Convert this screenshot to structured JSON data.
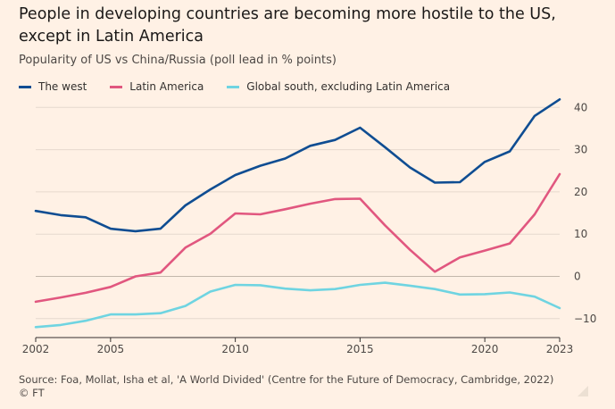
{
  "title": "People in developing countries are becoming more hostile to the US, except in Latin America",
  "subtitle": "Popularity of US vs China/Russia (poll lead in % points)",
  "source": "Source: Foa, Mollat, Isha et al, 'A World Divided' (Centre for the Future of Democracy, Cambridge, 2022)",
  "credit": "© FT",
  "chart_data": {
    "type": "line",
    "x": [
      2002,
      2003,
      2004,
      2005,
      2006,
      2007,
      2008,
      2009,
      2010,
      2011,
      2012,
      2013,
      2014,
      2015,
      2016,
      2017,
      2018,
      2019,
      2020,
      2021,
      2022,
      2023
    ],
    "xticks": [
      2002,
      2005,
      2010,
      2015,
      2020,
      2023
    ],
    "yticks": [
      -10,
      0,
      10,
      20,
      30,
      40
    ],
    "ylim": [
      -13,
      43
    ],
    "xlim": [
      2002,
      2023
    ],
    "grid": true,
    "legend_position": "top-left",
    "series": [
      {
        "name": "The west",
        "color": "#0f4d92",
        "values": [
          15.5,
          14.5,
          14.0,
          11.3,
          10.7,
          11.3,
          16.8,
          20.6,
          24.0,
          26.2,
          27.9,
          30.9,
          32.3,
          35.2,
          30.6,
          25.8,
          22.2,
          22.3,
          27.1,
          29.6,
          38.0,
          41.9
        ]
      },
      {
        "name": "Latin America",
        "color": "#e1577f",
        "values": [
          -6.0,
          -5.0,
          -3.9,
          -2.5,
          0.0,
          0.9,
          6.8,
          10.1,
          14.9,
          14.7,
          15.9,
          17.2,
          18.3,
          18.4,
          12.1,
          6.3,
          1.1,
          4.5,
          6.1,
          7.8,
          14.7,
          24.2
        ]
      },
      {
        "name": "Global south, excluding Latin America",
        "color": "#6fd4e1",
        "values": [
          -12.0,
          -11.5,
          -10.5,
          -9.0,
          -9.0,
          -8.7,
          -7.0,
          -3.6,
          -2.0,
          -2.1,
          -2.9,
          -3.3,
          -3.0,
          -2.0,
          -1.5,
          -2.2,
          -3.0,
          -4.3,
          -4.2,
          -3.8,
          -4.8,
          -7.5
        ]
      }
    ]
  }
}
